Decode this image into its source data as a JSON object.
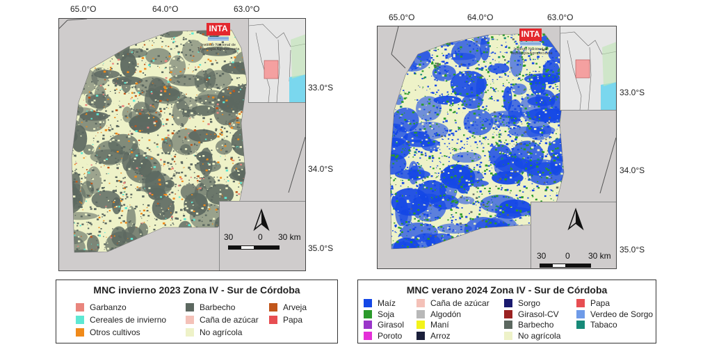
{
  "colors": {
    "page_bg": "#ffffff",
    "map_bg": "#cfcccc",
    "no_agricola": "#eef2c8",
    "barbecho": "#5c6860",
    "water": "#7ad7ee",
    "inset_highlight": "#f4a0a0",
    "inta_red": "#e3282e"
  },
  "left": {
    "coords_top": [
      "65.0°O",
      "64.0°O",
      "63.0°O"
    ],
    "coords_right": [
      "33.0°S",
      "34.0°S",
      "35.0°S"
    ],
    "logo": {
      "brand": "INTA",
      "caption": "Instituto Nacional de Tecnología Agropecuaria"
    },
    "scale": {
      "left": "30",
      "mid": "0",
      "right": "30 km"
    },
    "legend": {
      "title": "MNC invierno 2023 Zona IV - Sur de Córdoba",
      "items": [
        {
          "label": "Garbanzo",
          "color": "#e9857d"
        },
        {
          "label": "Cereales de invierno",
          "color": "#5ee8d3"
        },
        {
          "label": "Otros cultivos",
          "color": "#f08a1a"
        },
        {
          "label": "Barbecho",
          "color": "#5c6860"
        },
        {
          "label": "Caña de azúcar",
          "color": "#f4c1b8"
        },
        {
          "label": "No agrícola",
          "color": "#eef2c8"
        },
        {
          "label": "Arveja",
          "color": "#c1561b"
        },
        {
          "label": "Papa",
          "color": "#e74e52"
        }
      ]
    }
  },
  "right": {
    "coords_top": [
      "65.0°O",
      "64.0°O",
      "63.0°O"
    ],
    "coords_right": [
      "33.0°S",
      "34.0°S",
      "35.0°S"
    ],
    "logo": {
      "brand": "INTA",
      "caption": "Instituto Nacional de Tecnología Agropecuaria"
    },
    "scale": {
      "left": "30",
      "mid": "0",
      "right": "30 km"
    },
    "legend": {
      "title": "MNC verano 2024 Zona IV - Sur de Córdoba",
      "items": [
        {
          "label": "Maíz",
          "color": "#1447e6"
        },
        {
          "label": "Soja",
          "color": "#2b9a2b"
        },
        {
          "label": "Girasol",
          "color": "#9a36c9"
        },
        {
          "label": "Poroto",
          "color": "#e42fd8"
        },
        {
          "label": "Caña de azúcar",
          "color": "#f4c1b8"
        },
        {
          "label": "Algodón",
          "color": "#b8b8b8"
        },
        {
          "label": "Maní",
          "color": "#f3f31a"
        },
        {
          "label": "Arroz",
          "color": "#1a1f3a"
        },
        {
          "label": "Sorgo",
          "color": "#1a1a6e"
        },
        {
          "label": "Girasol-CV",
          "color": "#9a2222"
        },
        {
          "label": "Barbecho",
          "color": "#5c6860"
        },
        {
          "label": "No agrícola",
          "color": "#eef2c8"
        },
        {
          "label": "Papa",
          "color": "#e74e52"
        },
        {
          "label": "Verdeo de Sorgo",
          "color": "#6f9be8"
        },
        {
          "label": "Tabaco",
          "color": "#178a78"
        }
      ]
    }
  }
}
